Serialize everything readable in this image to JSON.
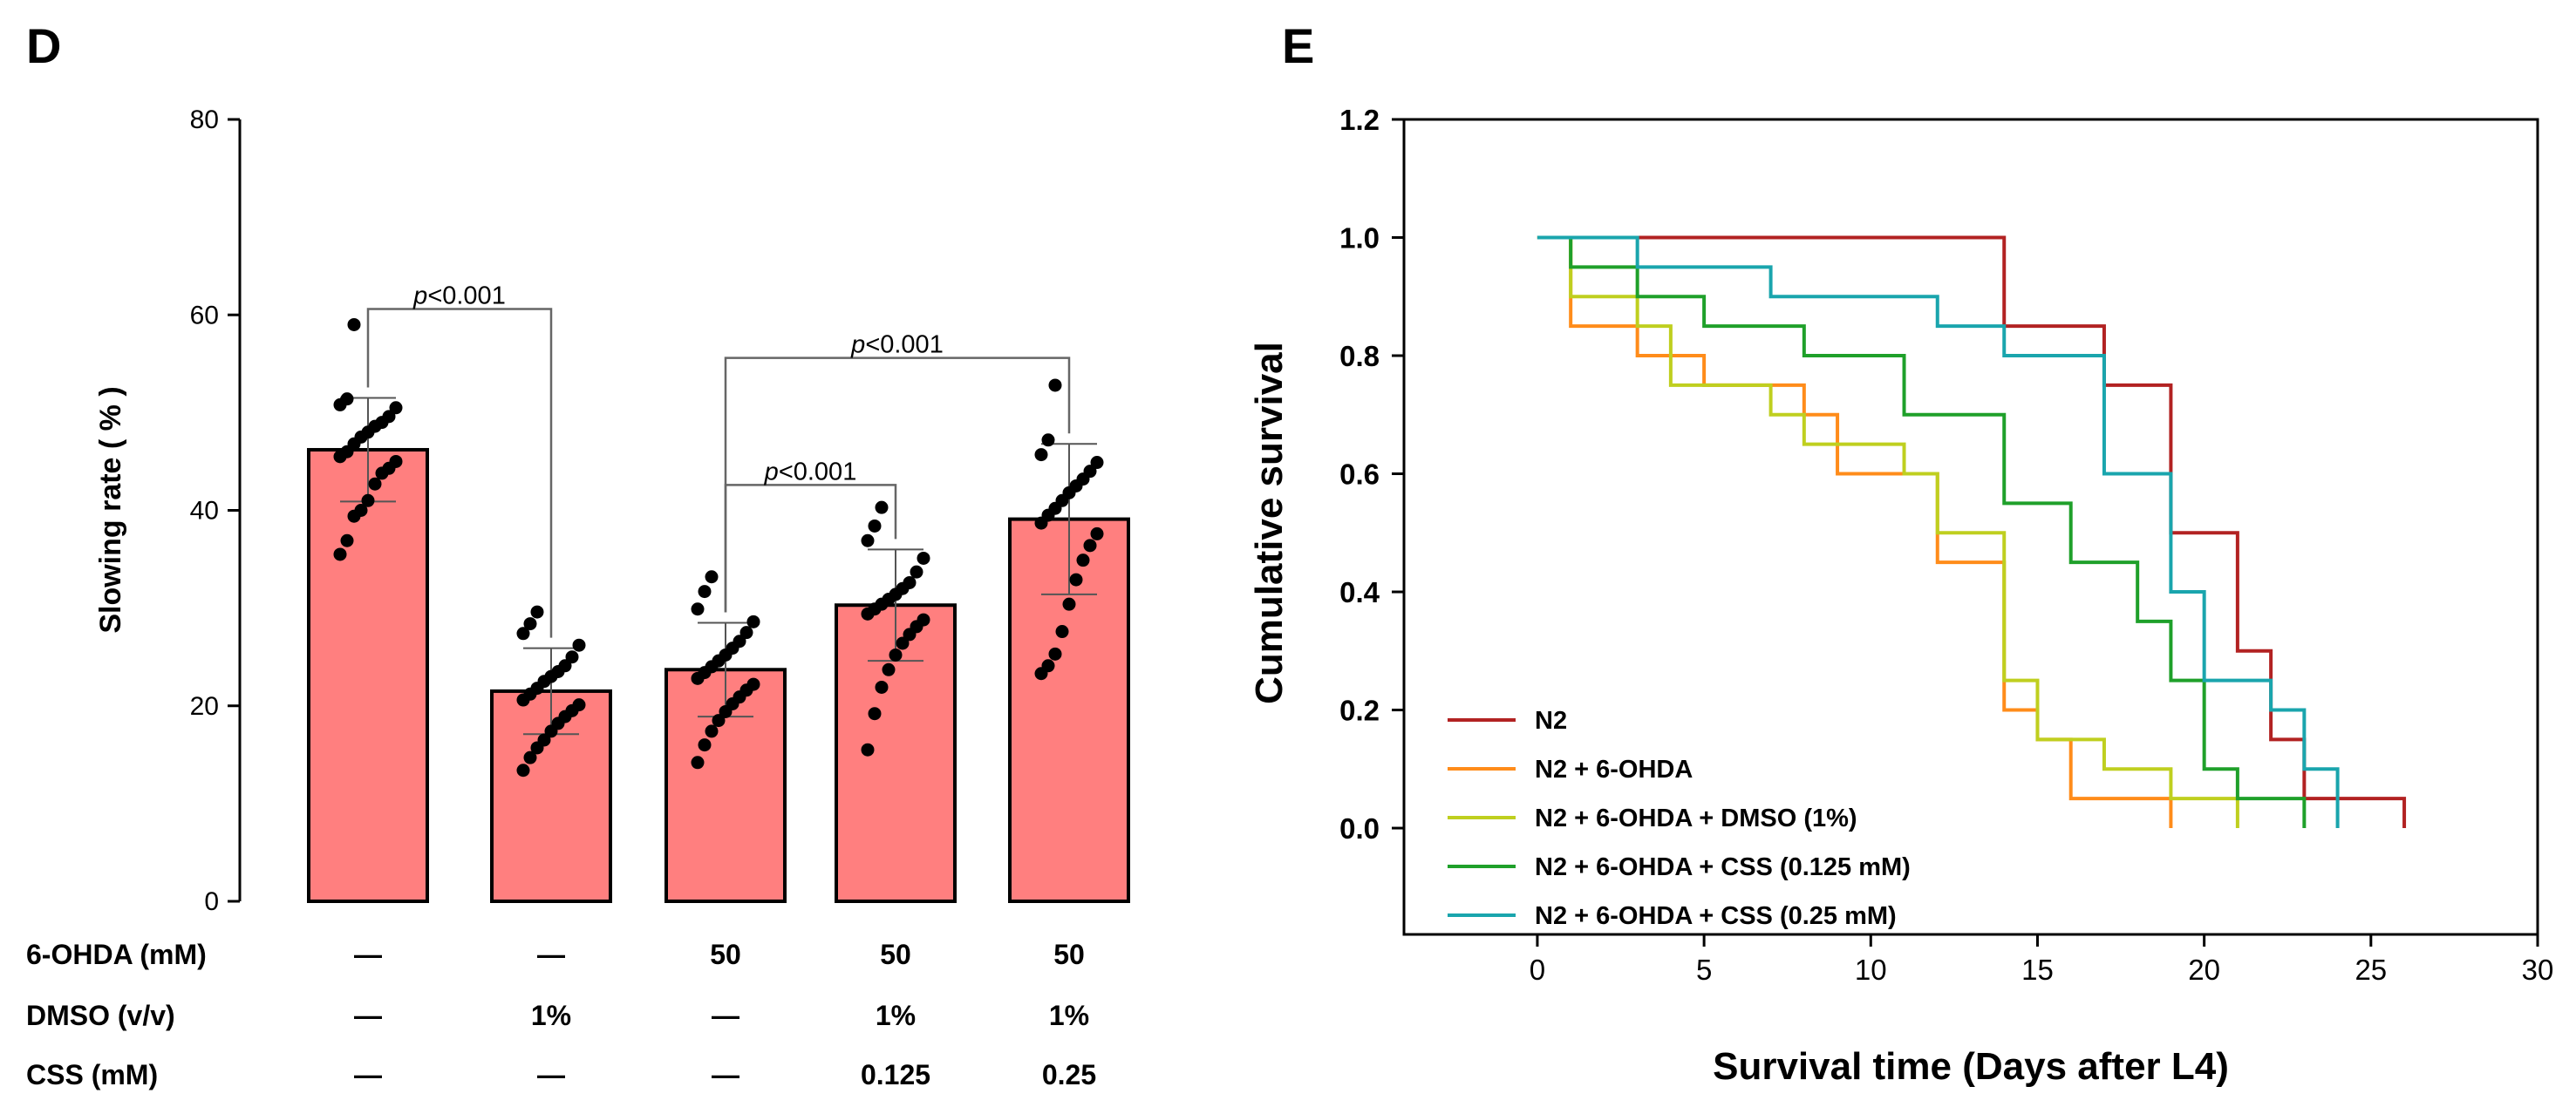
{
  "panel_labels": {
    "d": "D",
    "e": "E"
  },
  "chart_data": [
    {
      "type": "bar",
      "panel": "D",
      "title": "",
      "ylabel": "Slowing  rate ( % )",
      "xlabel": "",
      "ylim": [
        0,
        80
      ],
      "y_ticks": [
        "0",
        "20",
        "40",
        "60",
        "80"
      ],
      "bar_color": "#ff7f7f",
      "groups": [
        {
          "mean": 46.2,
          "sd": 5.3,
          "points": [
            59.0,
            51.4,
            50.8,
            50.5,
            49.6,
            49.0,
            48.6,
            48.0,
            47.5,
            46.8,
            46.0,
            45.5,
            45.0,
            44.3,
            43.8,
            42.7,
            41.0,
            40.0,
            39.4,
            36.9,
            35.5
          ]
        },
        {
          "mean": 21.5,
          "sd": 4.4,
          "points": [
            29.6,
            28.4,
            27.4,
            26.2,
            25.0,
            24.1,
            23.5,
            23.0,
            22.5,
            21.8,
            21.2,
            20.6,
            20.1,
            19.5,
            18.9,
            18.2,
            17.4,
            16.5,
            15.7,
            14.7,
            13.4
          ]
        },
        {
          "mean": 23.7,
          "sd": 4.8,
          "points": [
            33.2,
            31.7,
            29.9,
            28.6,
            27.5,
            26.6,
            25.9,
            25.2,
            24.6,
            24.0,
            23.4,
            22.8,
            22.2,
            21.6,
            20.9,
            20.2,
            19.4,
            18.5,
            17.4,
            16.0,
            14.2
          ]
        },
        {
          "mean": 30.3,
          "sd": 5.7,
          "points": [
            40.3,
            38.4,
            36.9,
            35.1,
            33.7,
            32.6,
            32.0,
            31.4,
            30.9,
            30.4,
            29.9,
            29.4,
            28.8,
            28.1,
            27.3,
            26.4,
            25.2,
            23.7,
            21.9,
            19.2,
            15.5
          ]
        },
        {
          "mean": 39.1,
          "sd": 7.7,
          "points": [
            52.8,
            47.2,
            45.7,
            44.9,
            44.0,
            43.2,
            42.5,
            41.8,
            41.0,
            40.2,
            39.5,
            38.7,
            37.6,
            36.4,
            34.9,
            32.9,
            30.4,
            27.6,
            25.3,
            24.1,
            23.3
          ]
        }
      ],
      "comparisons": [
        {
          "from": 0,
          "to": 1,
          "y": 60.6,
          "p_prefix": "p",
          "p_value": "<0.001"
        },
        {
          "from": 2,
          "to": 4,
          "y": 55.6,
          "p_prefix": "p",
          "p_value": "<0.001"
        },
        {
          "from": 2,
          "to": 3,
          "y": 42.6,
          "p_prefix": "p",
          "p_value": "<0.001"
        }
      ],
      "conditions": [
        {
          "label": "6-OHDA (mM)",
          "values": [
            "—",
            "—",
            "50",
            "50",
            "50"
          ]
        },
        {
          "label": "DMSO (v/v)",
          "values": [
            "—",
            "1%",
            "—",
            "1%",
            "1%"
          ]
        },
        {
          "label": "CSS (mM)",
          "values": [
            "—",
            "—",
            "—",
            "0.125",
            "0.25"
          ]
        }
      ]
    },
    {
      "type": "line",
      "panel": "E",
      "title": "",
      "xlabel": "Survival time (Days after L4)",
      "ylabel": "Cumulative survival",
      "xlim": [
        -4,
        30
      ],
      "ylim": [
        -0.18,
        1.2
      ],
      "x_ticks": [
        "0",
        "5",
        "10",
        "15",
        "20",
        "25",
        "30"
      ],
      "y_ticks": [
        "0.0",
        "0.2",
        "0.4",
        "0.6",
        "0.8",
        "1.0",
        "1.2"
      ],
      "legend_position": "bottom-left",
      "series": [
        {
          "name": "N2",
          "color": "#b22222",
          "steps": [
            [
              0,
              1.0
            ],
            [
              14,
              0.85
            ],
            [
              17,
              0.75
            ],
            [
              19,
              0.5
            ],
            [
              21,
              0.3
            ],
            [
              22,
              0.15
            ],
            [
              23,
              0.05
            ],
            [
              26,
              0.0
            ]
          ]
        },
        {
          "name": "N2 + 6-OHDA",
          "color": "#ff8c1a",
          "steps": [
            [
              0,
              1.0
            ],
            [
              1,
              0.85
            ],
            [
              3,
              0.8
            ],
            [
              5,
              0.75
            ],
            [
              8,
              0.7
            ],
            [
              9,
              0.6
            ],
            [
              12,
              0.45
            ],
            [
              14,
              0.2
            ],
            [
              15,
              0.15
            ],
            [
              16,
              0.05
            ],
            [
              19,
              0.0
            ]
          ]
        },
        {
          "name": "N2 + 6-OHDA + DMSO (1%)",
          "color": "#bfcf1f",
          "steps": [
            [
              0,
              1.0
            ],
            [
              1,
              0.9
            ],
            [
              3,
              0.85
            ],
            [
              4,
              0.75
            ],
            [
              7,
              0.7
            ],
            [
              8,
              0.65
            ],
            [
              11,
              0.6
            ],
            [
              12,
              0.5
            ],
            [
              14,
              0.25
            ],
            [
              15,
              0.15
            ],
            [
              17,
              0.1
            ],
            [
              19,
              0.05
            ],
            [
              21,
              0.0
            ]
          ]
        },
        {
          "name": "N2 + 6-OHDA + CSS (0.125 mM)",
          "color": "#1fa02a",
          "steps": [
            [
              0,
              1.0
            ],
            [
              1,
              0.95
            ],
            [
              3,
              0.9
            ],
            [
              5,
              0.85
            ],
            [
              8,
              0.8
            ],
            [
              11,
              0.7
            ],
            [
              14,
              0.55
            ],
            [
              16,
              0.45
            ],
            [
              18,
              0.35
            ],
            [
              19,
              0.25
            ],
            [
              20,
              0.1
            ],
            [
              21,
              0.05
            ],
            [
              23,
              0.0
            ]
          ]
        },
        {
          "name": "N2 + 6-OHDA + CSS (0.25 mM)",
          "color": "#1aa5ad",
          "steps": [
            [
              0,
              1.0
            ],
            [
              3,
              0.95
            ],
            [
              7,
              0.9
            ],
            [
              12,
              0.85
            ],
            [
              14,
              0.8
            ],
            [
              17,
              0.6
            ],
            [
              19,
              0.4
            ],
            [
              20,
              0.25
            ],
            [
              22,
              0.2
            ],
            [
              23,
              0.1
            ],
            [
              24,
              0.0
            ]
          ]
        }
      ]
    }
  ]
}
